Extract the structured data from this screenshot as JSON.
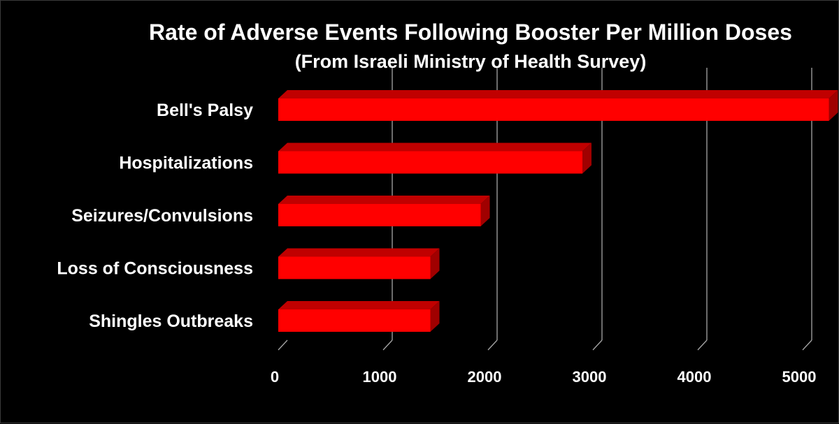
{
  "chart_data": {
    "type": "bar",
    "orientation": "horizontal",
    "style": "3d",
    "title": "Rate of Adverse Events Following Booster Per Million Doses",
    "subtitle": "(From Israeli Ministry of Health Survey)",
    "categories": [
      "Bell's Palsy",
      "Hospitalizations",
      "Seizures/Convulsions",
      "Loss of Consciousness",
      "Shingles Outbreaks"
    ],
    "values": [
      5250,
      2900,
      1930,
      1450,
      1450
    ],
    "xlim": [
      0,
      5200
    ],
    "xticks": [
      "0",
      "1000",
      "2000",
      "3000",
      "4000",
      "5000"
    ],
    "xtick_values": [
      0,
      1000,
      2000,
      3000,
      4000,
      5000
    ],
    "grid": true,
    "legend": "none",
    "colors": {
      "background": "#000000",
      "bar_front": "#ff0000",
      "bar_top": "#c00000",
      "bar_side": "#a00000",
      "grid": "#a6a6a6",
      "text": "#ffffff"
    }
  }
}
